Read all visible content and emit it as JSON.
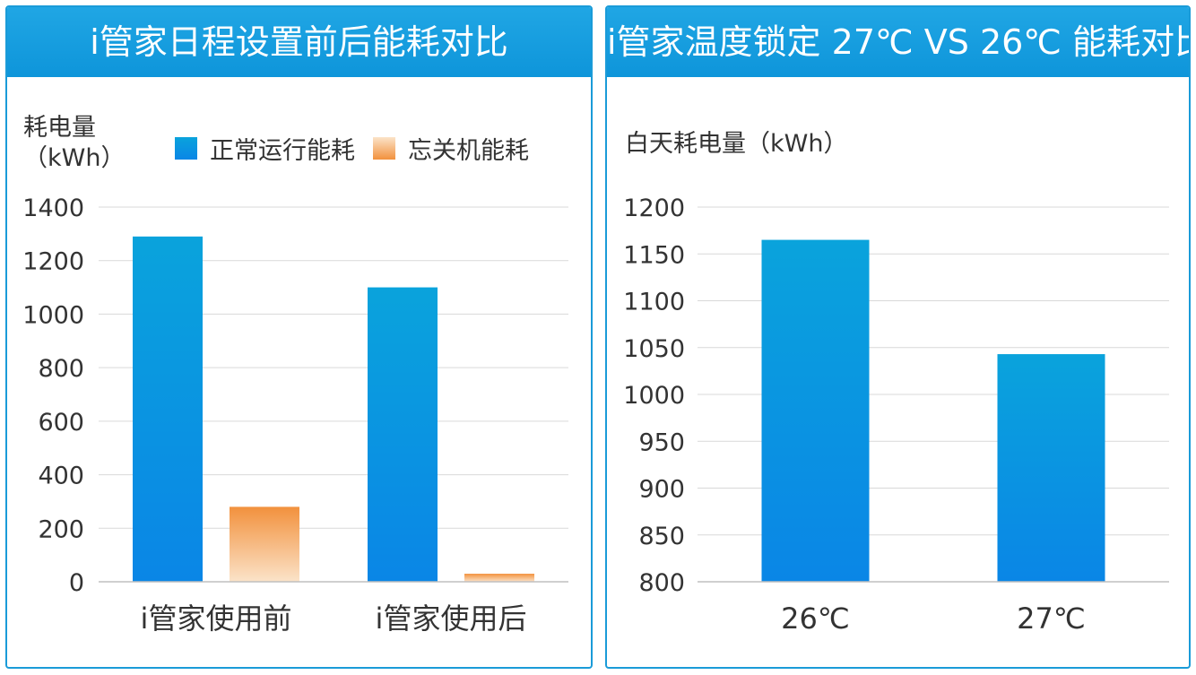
{
  "colors": {
    "header": "#1a9bd8",
    "normal_top": "#0aa3dc",
    "normal_bottom": "#0a86e6",
    "off_top": "#f2913d",
    "off_bottom": "#fbe3c9",
    "grid": "#d9d9d9"
  },
  "left_panel": {
    "title": "i管家日程设置前后能耗对比",
    "ylabel_line1": "耗电量",
    "ylabel_line2": "（kWh）",
    "legend": [
      "正常运行能耗",
      "忘关机能耗"
    ]
  },
  "right_panel": {
    "title": "i管家温度锁定 27℃ VS 26℃ 能耗对比",
    "ylabel": "白天耗电量（kWh）"
  },
  "chart_data": [
    {
      "type": "bar",
      "title": "i管家日程设置前后能耗对比",
      "ylabel": "耗电量（kWh）",
      "categories": [
        "i管家使用前",
        "i管家使用后"
      ],
      "series": [
        {
          "name": "正常运行能耗",
          "values": [
            1290,
            1100
          ]
        },
        {
          "name": "忘关机能耗",
          "values": [
            280,
            30
          ]
        }
      ],
      "ylim": [
        0,
        1400
      ],
      "yticks": [
        0,
        200,
        400,
        600,
        800,
        1000,
        1200,
        1400
      ],
      "grid": true,
      "legend": "top"
    },
    {
      "type": "bar",
      "title": "i管家温度锁定 27℃ VS 26℃ 能耗对比",
      "ylabel": "白天耗电量（kWh）",
      "categories": [
        "26℃",
        "27℃"
      ],
      "values": [
        1165,
        1043
      ],
      "ylim": [
        800,
        1200
      ],
      "yticks": [
        800,
        850,
        900,
        950,
        1000,
        1050,
        1100,
        1150,
        1200
      ],
      "grid": true
    }
  ]
}
